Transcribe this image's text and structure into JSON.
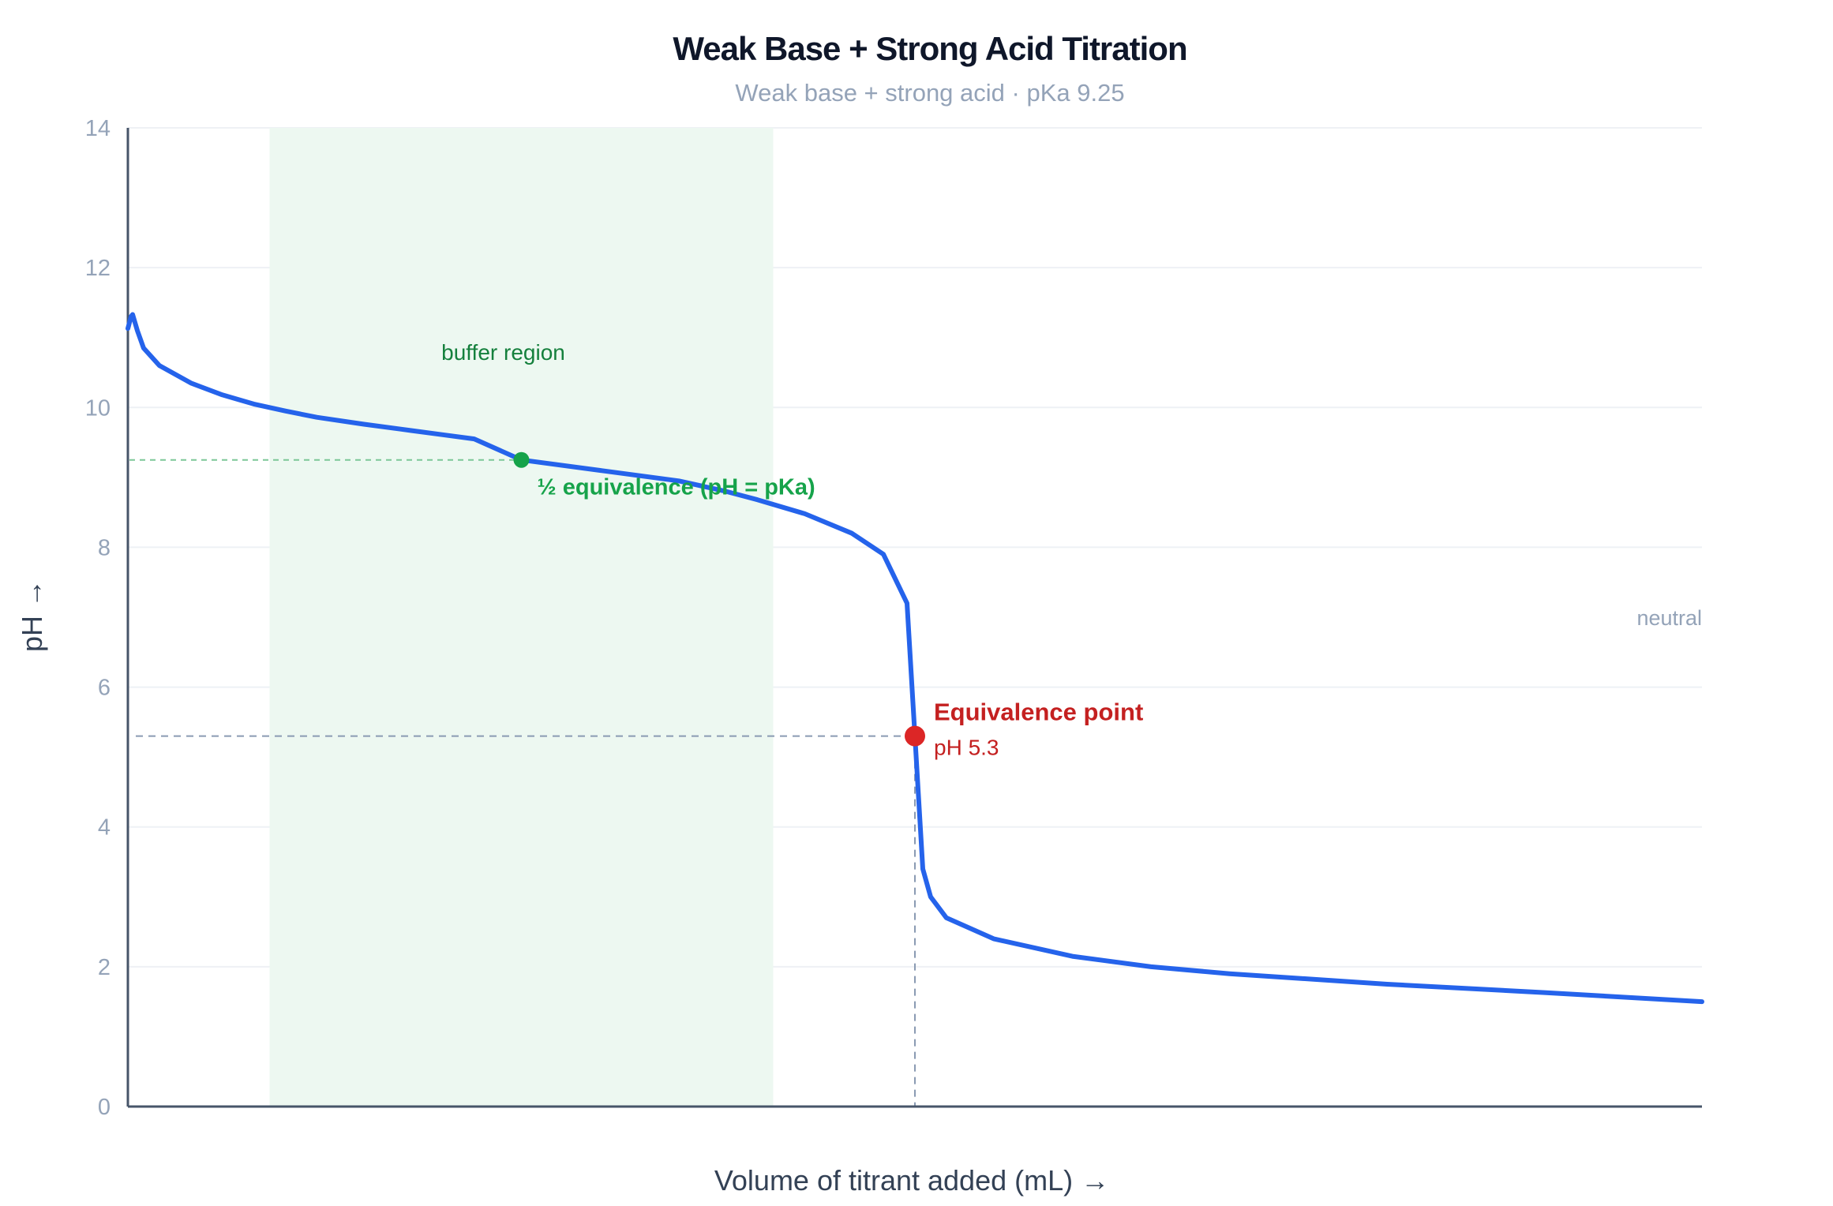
{
  "chart_data": {
    "type": "line",
    "title": "Weak Base + Strong Acid Titration",
    "subtitle": "Weak base + strong acid · pKa 9.25",
    "xlabel": "Volume of titrant added (mL) →",
    "ylabel": "pH →",
    "ylim": [
      0,
      14
    ],
    "yticks": [
      "0",
      "2",
      "4",
      "6",
      "8",
      "10",
      "12",
      "14"
    ],
    "xticks": [],
    "grid": true,
    "pKa": 9.25,
    "equivalence_fraction": 0.5,
    "series": [
      {
        "color": "#2563eb",
        "points": [
          [
            0.0,
            11.13
          ],
          [
            0.002,
            11.3
          ],
          [
            0.003,
            11.33
          ],
          [
            0.006,
            11.1
          ],
          [
            0.01,
            10.85
          ],
          [
            0.02,
            10.6
          ],
          [
            0.04,
            10.35
          ],
          [
            0.06,
            10.18
          ],
          [
            0.08,
            10.05
          ],
          [
            0.1,
            9.95
          ],
          [
            0.12,
            9.86
          ],
          [
            0.15,
            9.76
          ],
          [
            0.18,
            9.67
          ],
          [
            0.2,
            9.61
          ],
          [
            0.22,
            9.55
          ],
          [
            0.25,
            9.25
          ],
          [
            0.3,
            9.1
          ],
          [
            0.35,
            8.95
          ],
          [
            0.38,
            8.8
          ],
          [
            0.4,
            8.68
          ],
          [
            0.43,
            8.48
          ],
          [
            0.46,
            8.2
          ],
          [
            0.48,
            7.9
          ],
          [
            0.495,
            7.2
          ],
          [
            0.5,
            5.3
          ],
          [
            0.505,
            3.4
          ],
          [
            0.51,
            3.0
          ],
          [
            0.52,
            2.7
          ],
          [
            0.55,
            2.4
          ],
          [
            0.6,
            2.15
          ],
          [
            0.65,
            2.0
          ],
          [
            0.7,
            1.9
          ],
          [
            0.8,
            1.75
          ],
          [
            0.9,
            1.63
          ],
          [
            1.0,
            1.5
          ]
        ]
      }
    ],
    "regions": [
      {
        "label": "buffer region",
        "x_from": 0.09,
        "x_to": 0.41,
        "color": "#edf8f1",
        "label_color": "#15803d"
      }
    ],
    "reference_lines": [
      {
        "label": "neutral",
        "value": 7,
        "color": "#94a3b8"
      }
    ],
    "markers": [
      {
        "label": "½ equivalence (pH = pKa)",
        "x": 0.25,
        "y": 9.25,
        "color": "#16a34a"
      },
      {
        "label": "Equivalence point",
        "sublabel": "pH 5.3",
        "x": 0.5,
        "y": 5.3,
        "color": "#dc2626",
        "label_color": "#c42020"
      }
    ],
    "colors": {
      "title": "#0f172a",
      "subtitle": "#94a3b8",
      "axis": "#475569",
      "tick": "#94a3b8",
      "axis_label": "#334155",
      "grid": "#eef1f5",
      "eq_guide": "#8a9ab2",
      "half_guide": "#7cc797"
    }
  }
}
